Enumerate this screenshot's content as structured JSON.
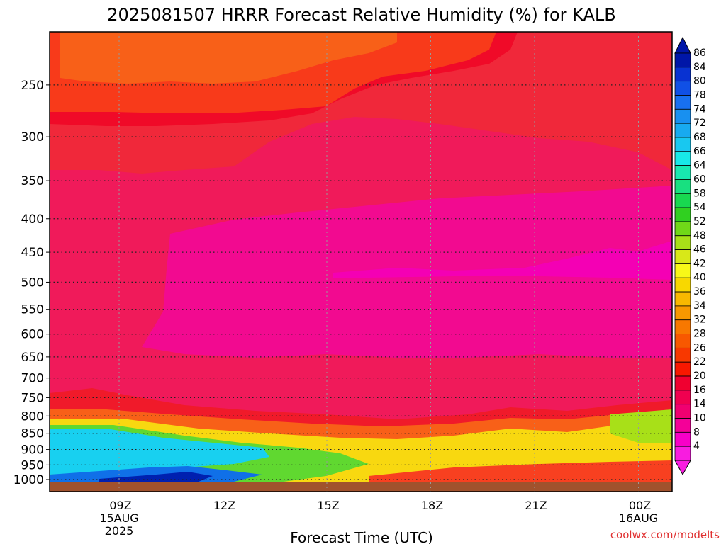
{
  "chart_data": {
    "type": "heatmap",
    "title": "2025081507 HRRR Forecast Relative Humidity (%) for KALB",
    "xlabel": "Forecast Time (UTC)",
    "ylabel": "",
    "x_ticks": [
      {
        "label": "09Z",
        "sub": [
          "15AUG",
          "2025"
        ]
      },
      {
        "label": "12Z",
        "sub": []
      },
      {
        "label": "15Z",
        "sub": []
      },
      {
        "label": "18Z",
        "sub": []
      },
      {
        "label": "21Z",
        "sub": []
      },
      {
        "label": "00Z",
        "sub": [
          "16AUG"
        ]
      }
    ],
    "y_ticks": [
      "250",
      "300",
      "350",
      "400",
      "450",
      "500",
      "550",
      "600",
      "650",
      "700",
      "750",
      "800",
      "850",
      "900",
      "950",
      "1000"
    ],
    "y_axis": "pressure (hPa), inverted, log scale",
    "grid": "dotted",
    "colorbar": {
      "labels": [
        "86",
        "84",
        "80",
        "78",
        "74",
        "72",
        "68",
        "66",
        "64",
        "60",
        "58",
        "54",
        "52",
        "48",
        "46",
        "42",
        "40",
        "36",
        "34",
        "32",
        "28",
        "26",
        "22",
        "20",
        "16",
        "14",
        "10",
        "8",
        "4"
      ],
      "colors": [
        "#0016a8",
        "#0832d2",
        "#1050e6",
        "#1870f0",
        "#1890f0",
        "#18aaf0",
        "#18c8f0",
        "#18e8e8",
        "#18e8b0",
        "#18e080",
        "#18d850",
        "#30d020",
        "#70d818",
        "#a8e018",
        "#d8e818",
        "#f8f818",
        "#f8d800",
        "#f8b800",
        "#f89800",
        "#f87800",
        "#f85800",
        "#f83800",
        "#f81800",
        "#f00030",
        "#f00050",
        "#f00070",
        "#f40098",
        "#f800c8",
        "#f81ce0"
      ]
    },
    "credit": "coolwx.com/modelts"
  }
}
